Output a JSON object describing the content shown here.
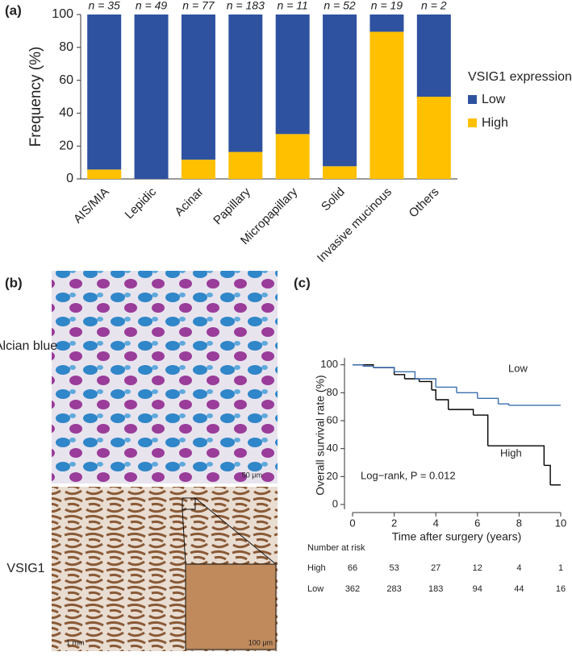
{
  "panel_labels": [
    "(a)",
    "(b)",
    "(c)"
  ],
  "images": {
    "labels": [
      "Alcian blue",
      "VSIG1"
    ],
    "scale_bars": [
      "50 μm",
      "1 mm",
      "100 μm"
    ]
  },
  "chart_data": [
    {
      "type": "bar",
      "stacked": true,
      "ylabel": "Frequency (%)",
      "categories": [
        "AIS/MIA",
        "Lepidic",
        "Acinar",
        "Papillary",
        "Micropapillary",
        "Solid",
        "Invasive mucinous",
        "Others"
      ],
      "annotations": [
        "n = 35",
        "n = 49",
        "n = 77",
        "n = 183",
        "n = 11",
        "n = 52",
        "n = 19",
        "n = 2"
      ],
      "legend_title": "VSIG1 expression",
      "series": [
        {
          "name": "Low",
          "color": "#2e52a0",
          "values": [
            94.3,
            100,
            88.3,
            83.6,
            72.7,
            92.3,
            10.5,
            50
          ]
        },
        {
          "name": "High",
          "color": "#ffc000",
          "values": [
            5.7,
            0,
            11.7,
            16.4,
            27.3,
            7.7,
            89.5,
            50
          ]
        }
      ],
      "ylim": [
        0,
        100
      ],
      "yticks": [
        0,
        20,
        40,
        60,
        80,
        100
      ]
    },
    {
      "type": "line",
      "step": true,
      "ylabel": "Overall survival rate (%)",
      "xlabel": "Time after surgery (years)",
      "annotation": "Log−rank, P = 0.012",
      "risk_title": "Number at risk",
      "series": [
        {
          "name": "High",
          "color": "#000000",
          "x": [
            0,
            1,
            2,
            2.5,
            3.2,
            3.8,
            4,
            4.6,
            5.8,
            6.5,
            9.2,
            9.5,
            10
          ],
          "values": [
            100,
            98,
            93,
            90,
            88,
            82,
            75,
            68,
            64,
            42,
            28,
            14,
            14
          ],
          "at_risk": [
            66,
            53,
            27,
            12,
            4,
            1
          ]
        },
        {
          "name": "Low",
          "color": "#3a6fb0",
          "x": [
            0,
            0.5,
            1,
            2,
            3,
            4,
            5,
            6,
            7,
            7.5,
            10
          ],
          "values": [
            100,
            99,
            98,
            95,
            90,
            84,
            80,
            76,
            72,
            71,
            71
          ],
          "at_risk": [
            362,
            283,
            183,
            94,
            44,
            16
          ]
        }
      ],
      "xlim": [
        0,
        10
      ],
      "xticks": [
        0,
        2,
        4,
        6,
        8,
        10
      ],
      "ylim": [
        0,
        105
      ],
      "yticks": [
        0,
        20,
        40,
        60,
        80,
        100
      ]
    }
  ]
}
